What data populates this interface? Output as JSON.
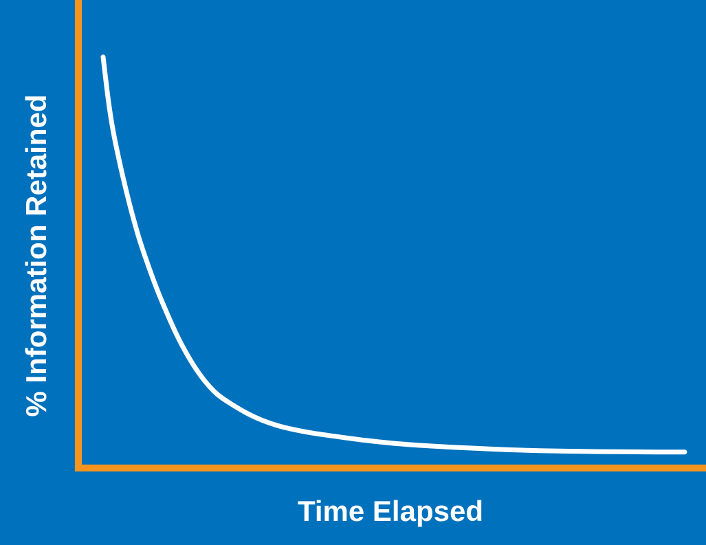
{
  "chart_data": {
    "type": "line",
    "title": "",
    "xlabel": "Time Elapsed",
    "ylabel": "% Information Retained",
    "xlim": [
      0,
      100
    ],
    "ylim": [
      0,
      100
    ],
    "grid": false,
    "axis_ticks": false,
    "series": [
      {
        "x": [
          0,
          1,
          2,
          4,
          6,
          8,
          10,
          13,
          16,
          19,
          22,
          26,
          30,
          35,
          40,
          45,
          50,
          55,
          60,
          65,
          70,
          75,
          80,
          85,
          90,
          95,
          100
        ],
        "y": [
          94,
          83,
          75,
          63,
          53,
          45,
          38,
          29,
          22,
          17,
          14,
          11,
          9,
          7.5,
          6.5,
          5.6,
          4.9,
          4.4,
          4.0,
          3.7,
          3.4,
          3.2,
          3.1,
          3.0,
          2.95,
          2.9,
          2.9
        ]
      }
    ],
    "colors": {
      "background": "#0071BC",
      "axis": "#F7941D",
      "line": "#FFFFFF",
      "text": "#FFFFFF"
    }
  }
}
